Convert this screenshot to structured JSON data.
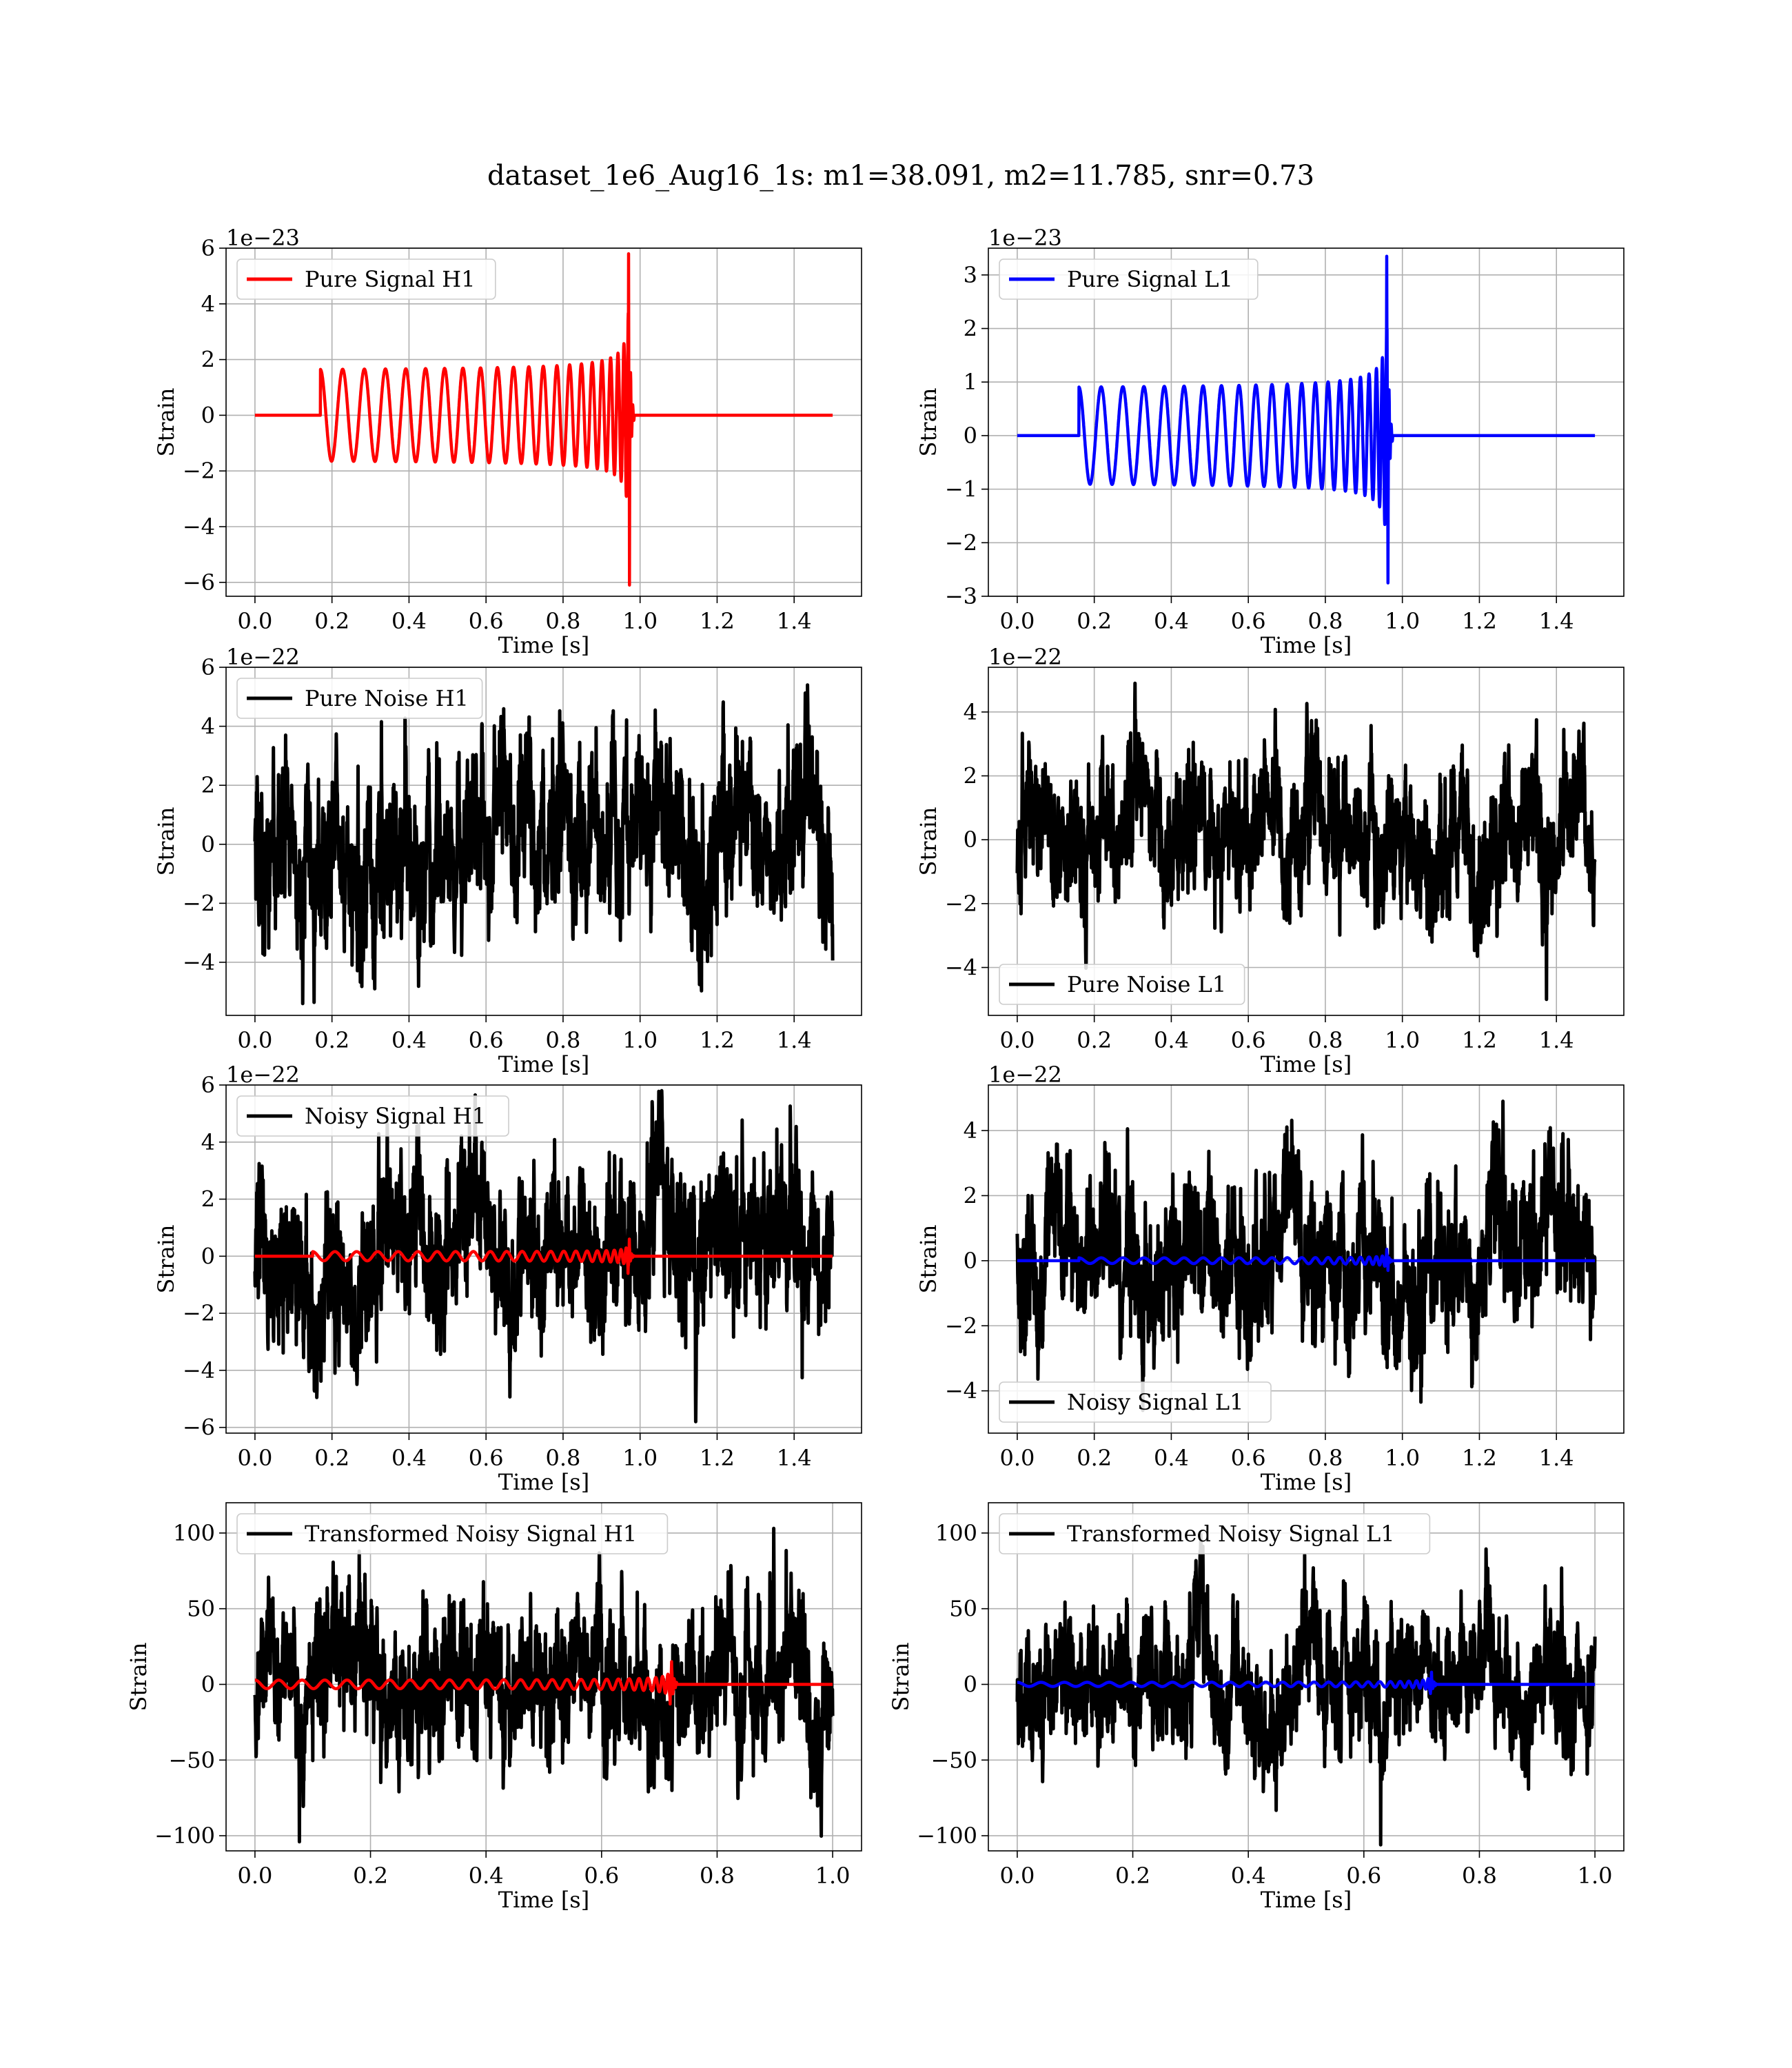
{
  "figure": {
    "title": "dataset_1e6_Aug16_1s: m1=38.091, m2=11.785, snr=0.73"
  },
  "colors": {
    "h1_signal": "#ff0000",
    "l1_signal": "#0000ff",
    "noise": "#000000",
    "grid": "#b0b0b0"
  },
  "chart_data": [
    {
      "id": "pure-signal-h1",
      "type": "line",
      "xlabel": "Time [s]",
      "ylabel": "Strain",
      "offset_text": "1e−23",
      "xlim": [
        -0.075,
        1.575
      ],
      "ylim": [
        -6.5,
        6.0
      ],
      "xticks": [
        0.0,
        0.2,
        0.4,
        0.6,
        0.8,
        1.0,
        1.2,
        1.4
      ],
      "xtick_labels": [
        "0.0",
        "0.2",
        "0.4",
        "0.6",
        "0.8",
        "1.0",
        "1.2",
        "1.4"
      ],
      "yticks": [
        -6,
        -4,
        -2,
        0,
        2,
        4,
        6
      ],
      "ytick_labels": [
        "−6",
        "−4",
        "−2",
        "0",
        "2",
        "4",
        "6"
      ],
      "legend_loc": "upper-left",
      "series": [
        {
          "name": "Pure Signal H1",
          "kind": "chirp",
          "color": "#ff0000",
          "x_start": 0.0,
          "x_end": 1.5,
          "onset": 0.17,
          "merger": 0.97,
          "ringdown": 0.985,
          "amp_start": 1.55,
          "amp_merge": 5.8,
          "amp_min": -6.1,
          "freq_start": 17,
          "freq_merge": 140
        }
      ]
    },
    {
      "id": "pure-signal-l1",
      "type": "line",
      "xlabel": "Time [s]",
      "ylabel": "Strain",
      "offset_text": "1e−23",
      "xlim": [
        -0.075,
        1.575
      ],
      "ylim": [
        -3.0,
        3.5
      ],
      "xticks": [
        0.0,
        0.2,
        0.4,
        0.6,
        0.8,
        1.0,
        1.2,
        1.4
      ],
      "xtick_labels": [
        "0.0",
        "0.2",
        "0.4",
        "0.6",
        "0.8",
        "1.0",
        "1.2",
        "1.4"
      ],
      "yticks": [
        -3,
        -2,
        -1,
        0,
        1,
        2,
        3
      ],
      "ytick_labels": [
        "−3",
        "−2",
        "−1",
        "0",
        "1",
        "2",
        "3"
      ],
      "legend_loc": "upper-left",
      "series": [
        {
          "name": "Pure Signal L1",
          "kind": "chirp",
          "color": "#0000ff",
          "x_start": 0.0,
          "x_end": 1.5,
          "onset": 0.16,
          "merger": 0.96,
          "ringdown": 0.975,
          "amp_start": 0.85,
          "amp_merge": 3.35,
          "amp_min": -2.75,
          "freq_start": 17,
          "freq_merge": 140
        }
      ]
    },
    {
      "id": "pure-noise-h1",
      "type": "line",
      "xlabel": "Time [s]",
      "ylabel": "Strain",
      "offset_text": "1e−22",
      "xlim": [
        -0.075,
        1.575
      ],
      "ylim": [
        -5.8,
        6.0
      ],
      "xticks": [
        0.0,
        0.2,
        0.4,
        0.6,
        0.8,
        1.0,
        1.2,
        1.4
      ],
      "xtick_labels": [
        "0.0",
        "0.2",
        "0.4",
        "0.6",
        "0.8",
        "1.0",
        "1.2",
        "1.4"
      ],
      "yticks": [
        -4,
        -2,
        0,
        2,
        4,
        6
      ],
      "ytick_labels": [
        "−4",
        "−2",
        "0",
        "2",
        "4",
        "6"
      ],
      "legend_loc": "upper-left",
      "series": [
        {
          "name": "Pure Noise H1",
          "kind": "noise",
          "color": "#000000",
          "x_start": 0.0,
          "x_end": 1.5,
          "sigma": 1.7,
          "max": 5.4,
          "min": -5.4,
          "seed": 11
        }
      ]
    },
    {
      "id": "pure-noise-l1",
      "type": "line",
      "xlabel": "Time [s]",
      "ylabel": "Strain",
      "offset_text": "1e−22",
      "xlim": [
        -0.075,
        1.575
      ],
      "ylim": [
        -5.5,
        5.4
      ],
      "xticks": [
        0.0,
        0.2,
        0.4,
        0.6,
        0.8,
        1.0,
        1.2,
        1.4
      ],
      "xtick_labels": [
        "0.0",
        "0.2",
        "0.4",
        "0.6",
        "0.8",
        "1.0",
        "1.2",
        "1.4"
      ],
      "yticks": [
        -4,
        -2,
        0,
        2,
        4
      ],
      "ytick_labels": [
        "−4",
        "−2",
        "0",
        "2",
        "4"
      ],
      "legend_loc": "lower-left",
      "series": [
        {
          "name": "Pure Noise L1",
          "kind": "noise",
          "color": "#000000",
          "x_start": 0.0,
          "x_end": 1.5,
          "sigma": 1.7,
          "max": 4.9,
          "min": -5.0,
          "seed": 23
        }
      ]
    },
    {
      "id": "noisy-signal-h1",
      "type": "line",
      "xlabel": "Time [s]",
      "ylabel": "Strain",
      "offset_text": "1e−22",
      "xlim": [
        -0.075,
        1.575
      ],
      "ylim": [
        -6.2,
        6.0
      ],
      "xticks": [
        0.0,
        0.2,
        0.4,
        0.6,
        0.8,
        1.0,
        1.2,
        1.4
      ],
      "xtick_labels": [
        "0.0",
        "0.2",
        "0.4",
        "0.6",
        "0.8",
        "1.0",
        "1.2",
        "1.4"
      ],
      "yticks": [
        -6,
        -4,
        -2,
        0,
        2,
        4,
        6
      ],
      "ytick_labels": [
        "−6",
        "−4",
        "−2",
        "0",
        "2",
        "4",
        "6"
      ],
      "legend_loc": "upper-left",
      "series": [
        {
          "name": "Noisy Signal H1",
          "kind": "noise",
          "color": "#000000",
          "x_start": 0.0,
          "x_end": 1.5,
          "sigma": 1.7,
          "max": 5.8,
          "min": -5.8,
          "seed": 37
        },
        {
          "name": "",
          "kind": "chirp",
          "color": "#ff0000",
          "x_start": 0.0,
          "x_end": 1.5,
          "onset": 0.15,
          "merger": 0.97,
          "ringdown": 0.985,
          "amp_start": 0.15,
          "amp_merge": 0.6,
          "amp_min": -0.6,
          "freq_start": 17,
          "freq_merge": 140
        }
      ]
    },
    {
      "id": "noisy-signal-l1",
      "type": "line",
      "xlabel": "Time [s]",
      "ylabel": "Strain",
      "offset_text": "1e−22",
      "xlim": [
        -0.075,
        1.575
      ],
      "ylim": [
        -5.3,
        5.4
      ],
      "xticks": [
        0.0,
        0.2,
        0.4,
        0.6,
        0.8,
        1.0,
        1.2,
        1.4
      ],
      "xtick_labels": [
        "0.0",
        "0.2",
        "0.4",
        "0.6",
        "0.8",
        "1.0",
        "1.2",
        "1.4"
      ],
      "yticks": [
        -4,
        -2,
        0,
        2,
        4
      ],
      "ytick_labels": [
        "−4",
        "−2",
        "0",
        "2",
        "4"
      ],
      "legend_loc": "lower-left",
      "series": [
        {
          "name": "Noisy Signal L1",
          "kind": "noise",
          "color": "#000000",
          "x_start": 0.0,
          "x_end": 1.5,
          "sigma": 1.7,
          "max": 4.9,
          "min": -4.6,
          "seed": 53
        },
        {
          "name": "",
          "kind": "chirp",
          "color": "#0000ff",
          "x_start": 0.0,
          "x_end": 1.5,
          "onset": 0.16,
          "merger": 0.96,
          "ringdown": 0.975,
          "amp_start": 0.08,
          "amp_merge": 0.35,
          "amp_min": -0.3,
          "freq_start": 17,
          "freq_merge": 140
        }
      ]
    },
    {
      "id": "transformed-h1",
      "type": "line",
      "xlabel": "Time [s]",
      "ylabel": "Strain",
      "offset_text": "",
      "xlim": [
        -0.05,
        1.05
      ],
      "ylim": [
        -110,
        120
      ],
      "xticks": [
        0.0,
        0.2,
        0.4,
        0.6,
        0.8,
        1.0
      ],
      "xtick_labels": [
        "0.0",
        "0.2",
        "0.4",
        "0.6",
        "0.8",
        "1.0"
      ],
      "yticks": [
        -100,
        -50,
        0,
        50,
        100
      ],
      "ytick_labels": [
        "−100",
        "−50",
        "0",
        "50",
        "100"
      ],
      "legend_loc": "upper-left",
      "series": [
        {
          "name": "Transformed Noisy Signal H1",
          "kind": "noise",
          "color": "#000000",
          "x_start": 0.0,
          "x_end": 1.0,
          "sigma": 30,
          "max": 103,
          "min": -104,
          "seed": 71
        },
        {
          "name": "",
          "kind": "chirp",
          "color": "#ff0000",
          "x_start": 0.0,
          "x_end": 1.0,
          "onset": 0.0,
          "merger": 0.72,
          "ringdown": 0.73,
          "amp_start": 2.5,
          "amp_merge": 15,
          "amp_min": -13,
          "freq_start": 24,
          "freq_merge": 200
        }
      ]
    },
    {
      "id": "transformed-l1",
      "type": "line",
      "xlabel": "Time [s]",
      "ylabel": "Strain",
      "offset_text": "",
      "xlim": [
        -0.05,
        1.05
      ],
      "ylim": [
        -110,
        120
      ],
      "xticks": [
        0.0,
        0.2,
        0.4,
        0.6,
        0.8,
        1.0
      ],
      "xtick_labels": [
        "0.0",
        "0.2",
        "0.4",
        "0.6",
        "0.8",
        "1.0"
      ],
      "yticks": [
        -100,
        -50,
        0,
        50,
        100
      ],
      "ytick_labels": [
        "−100",
        "−50",
        "0",
        "50",
        "100"
      ],
      "legend_loc": "upper-left",
      "series": [
        {
          "name": "Transformed Noisy Signal L1",
          "kind": "noise",
          "color": "#000000",
          "x_start": 0.0,
          "x_end": 1.0,
          "sigma": 28,
          "max": 99,
          "min": -106,
          "seed": 89
        },
        {
          "name": "",
          "kind": "chirp",
          "color": "#0000ff",
          "x_start": 0.0,
          "x_end": 1.0,
          "onset": 0.0,
          "merger": 0.715,
          "ringdown": 0.725,
          "amp_start": 1.2,
          "amp_merge": 8,
          "amp_min": -6,
          "freq_start": 24,
          "freq_merge": 200
        }
      ]
    }
  ]
}
